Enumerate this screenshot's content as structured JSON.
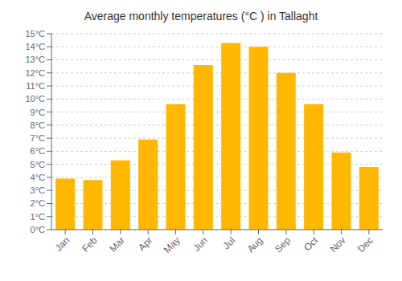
{
  "chart_data": {
    "type": "bar",
    "title": "Average monthly temperatures (°C ) in Tallaght",
    "categories": [
      "Jan",
      "Feb",
      "Mar",
      "Apr",
      "May",
      "Jun",
      "Jul",
      "Aug",
      "Sep",
      "Oct",
      "Nov",
      "Dec"
    ],
    "values": [
      3.9,
      3.8,
      5.3,
      6.9,
      9.6,
      12.6,
      14.3,
      14.0,
      12.0,
      9.6,
      5.9,
      4.8
    ],
    "color": "#FFB700",
    "ylim": [
      0,
      15
    ],
    "yticks": [
      {
        "value": 0,
        "label": "0°C"
      },
      {
        "value": 1,
        "label": "1°C"
      },
      {
        "value": 2,
        "label": "2°C"
      },
      {
        "value": 3,
        "label": "3°C"
      },
      {
        "value": 4,
        "label": "4°C"
      },
      {
        "value": 5,
        "label": "5°C"
      },
      {
        "value": 6,
        "label": "6°C"
      },
      {
        "value": 7,
        "label": "7°C"
      },
      {
        "value": 8,
        "label": "8°C"
      },
      {
        "value": 9,
        "label": "9°C"
      },
      {
        "value": 10,
        "label": "10°C"
      },
      {
        "value": 11,
        "label": "11°C"
      },
      {
        "value": 12,
        "label": "12°C"
      },
      {
        "value": 13,
        "label": "13°C"
      },
      {
        "value": 14,
        "label": "14°C"
      },
      {
        "value": 15,
        "label": "15°C"
      }
    ],
    "grid": true
  }
}
